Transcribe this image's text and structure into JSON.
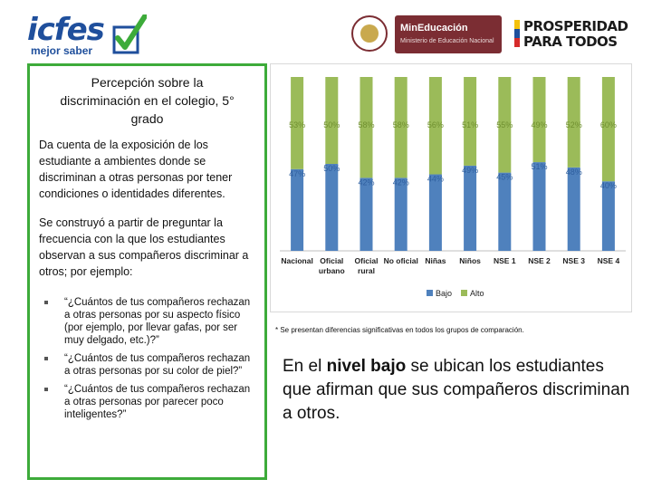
{
  "header": {
    "icfes_logo": {
      "word": "icfes",
      "tagline": "mejor saber"
    },
    "ministry_logo": {
      "title": "MinEducación",
      "subtitle": "Ministerio de Educación Nacional"
    },
    "prosperidad_logo": {
      "line1": "PROSPERIDAD",
      "line2": "PARA TODOS"
    }
  },
  "left_panel": {
    "title": "Percepción sobre la discriminación en el colegio, 5° grado",
    "paragraph1": "Da cuenta de la exposición de los estudiante a ambientes donde se discriminan a otras personas por tener condiciones o identidades diferentes.",
    "paragraph2": "Se construyó a partir de preguntar la frecuencia con la que los estudiantes observan a sus compañeros discriminar a otros; por ejemplo:",
    "bullets": [
      "“¿Cuántos de tus compañeros rechazan a otras personas por su aspecto físico (por ejemplo, por llevar gafas, por ser muy delgado, etc.)?”",
      "“¿Cuántos de tus compañeros rechazan a otras personas por su color de piel?”",
      "“¿Cuántos de tus compañeros rechazan a otras personas por parecer poco inteligentes?”"
    ]
  },
  "chart_data": {
    "type": "bar",
    "stacked": true,
    "categories": [
      "Nacional",
      "Oficial urbano",
      "Oficial rural",
      "No oficial",
      "Niñas",
      "Niños",
      "NSE 1",
      "NSE 2",
      "NSE 3",
      "NSE 4"
    ],
    "series": [
      {
        "name": "Bajo",
        "color": "#4f81bd",
        "values": [
          47,
          50,
          42,
          42,
          44,
          49,
          45,
          51,
          48,
          40
        ]
      },
      {
        "name": "Alto",
        "color": "#9bbb59",
        "values": [
          53,
          50,
          58,
          58,
          56,
          51,
          55,
          49,
          52,
          60
        ]
      }
    ],
    "ylim": [
      0,
      100
    ],
    "value_suffix": "%",
    "legend_position": "bottom",
    "grid": false
  },
  "footnote": "* Se presentan diferencias significativas en todos los grupos de comparación.",
  "conclusion": {
    "before": "En el ",
    "bold": "nivel bajo",
    "after": " se ubican los estudiantes que afirman que sus compañeros discriminan a otros."
  },
  "colors": {
    "panel_border": "#3dab3a",
    "bajo": "#4f81bd",
    "alto": "#9bbb59",
    "ministry": "#7b2d33"
  }
}
